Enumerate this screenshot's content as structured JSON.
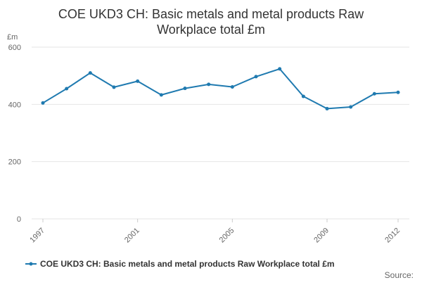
{
  "chart_data": {
    "type": "line",
    "title_lines": [
      "COE UKD3 CH: Basic metals and metal products Raw",
      "Workplace total £m"
    ],
    "y_unit": "£m",
    "ylim": [
      0,
      600
    ],
    "y_ticks": [
      0,
      200,
      400,
      600
    ],
    "x": [
      1997,
      1998,
      1999,
      2000,
      2001,
      2002,
      2003,
      2004,
      2005,
      2006,
      2007,
      2008,
      2009,
      2010,
      2011,
      2012
    ],
    "x_tick_labels": [
      "1997",
      "2001",
      "2005",
      "2009",
      "2012"
    ],
    "grid": true,
    "series": [
      {
        "name": "COE UKD3 CH: Basic metals and metal products Raw Workplace total £m",
        "color": "#1f7ab0",
        "values": [
          405,
          455,
          510,
          460,
          481,
          433,
          456,
          470,
          461,
          497,
          524,
          428,
          385,
          391,
          437,
          442
        ]
      }
    ],
    "legend_position": "bottom",
    "source_label": "Source:"
  }
}
